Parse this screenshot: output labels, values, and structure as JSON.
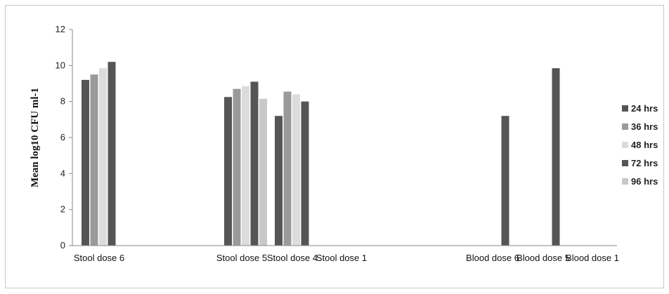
{
  "chart_data": {
    "type": "bar",
    "ylabel": "Mean log10 CFU ml-1",
    "ylim": [
      0,
      12
    ],
    "yticks": [
      0,
      2,
      4,
      6,
      8,
      10,
      12
    ],
    "grid": false,
    "legend_position": "right",
    "categories": [
      "Stool dose 6",
      "Stool dose 5",
      "Stool dose 4",
      "Stool dose 1",
      "Blood dose 6",
      "Blood dose 5",
      "Blood dose 1"
    ],
    "series": [
      {
        "name": "24 hrs",
        "color": "#555555",
        "values": [
          9.2,
          8.25,
          7.2,
          null,
          null,
          null,
          null
        ]
      },
      {
        "name": "36 hrs",
        "color": "#9a9a9a",
        "values": [
          9.5,
          8.7,
          8.55,
          null,
          null,
          null,
          null
        ]
      },
      {
        "name": "48 hrs",
        "color": "#dcdcdc",
        "values": [
          9.85,
          8.85,
          8.4,
          null,
          null,
          null,
          null
        ]
      },
      {
        "name": "72 hrs",
        "color": "#555555",
        "values": [
          10.2,
          9.1,
          8.0,
          null,
          7.2,
          9.85,
          null
        ]
      },
      {
        "name": "96 hrs",
        "color": "#c8c8c8",
        "values": [
          null,
          8.15,
          null,
          null,
          null,
          null,
          null
        ]
      }
    ]
  }
}
